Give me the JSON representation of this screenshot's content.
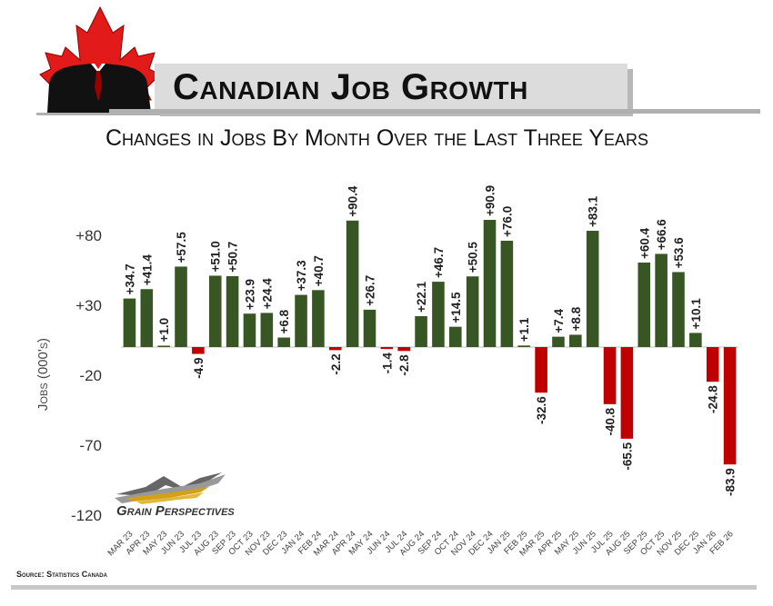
{
  "header": {
    "title": "Canadian Job Growth",
    "subtitle": "Changes in Jobs By Month Over the Last Three Years"
  },
  "footer": {
    "source": "Source: Statistics Canada",
    "logo_text": "Grain Perspectives"
  },
  "colors": {
    "positive": "#375623",
    "negative": "#C00000",
    "leaf": "#E21A1A"
  },
  "chart_data": {
    "type": "bar",
    "title": "Changes in Jobs By Month Over the Last Three Years",
    "ylabel": "Jobs (000's)",
    "xlabel": "",
    "ylim": [
      -120,
      80
    ],
    "yticks": [
      80,
      30,
      -20,
      -70,
      -120
    ],
    "ytick_labels": [
      "+80",
      "+30",
      "-20",
      "-70",
      "-120"
    ],
    "categories": [
      "MAR 23",
      "APR 23",
      "MAY 23",
      "JUN 23",
      "JUL 23",
      "AUG 23",
      "SEP 23",
      "OCT 23",
      "NOV 23",
      "DEC 23",
      "JAN 24",
      "FEB 24",
      "MAR 24",
      "APR 24",
      "MAY 24",
      "JUN 24",
      "JUL 24",
      "AUG 24",
      "SEP 24",
      "OCT 24",
      "NOV 24",
      "DEC 24",
      "JAN 25",
      "FEB 25",
      "MAR 25",
      "APR 25",
      "MAY 25",
      "JUN 25",
      "JUL 25",
      "AUG 25",
      "SEP 25",
      "OCT 25",
      "NOV 25",
      "DEC 25",
      "JAN 26",
      "FEB 26"
    ],
    "values": [
      34.7,
      41.4,
      1.0,
      57.5,
      -4.9,
      51.0,
      50.7,
      23.9,
      24.4,
      6.8,
      37.3,
      40.7,
      -2.2,
      90.4,
      26.7,
      -1.4,
      -2.8,
      22.1,
      46.7,
      14.5,
      50.5,
      90.9,
      76.0,
      1.1,
      -32.6,
      7.4,
      8.8,
      83.1,
      -40.8,
      -65.5,
      60.4,
      66.6,
      53.6,
      10.1,
      -24.8,
      -83.9
    ],
    "labels": [
      "+34.7",
      "+41.4",
      "+1.0",
      "+57.5",
      "-4.9",
      "+51.0",
      "+50.7",
      "+23.9",
      "+24.4",
      "+6.8",
      "+37.3",
      "+40.7",
      "-2.2",
      "+90.4",
      "+26.7",
      "-1.4",
      "-2.8",
      "+22.1",
      "+46.7",
      "+14.5",
      "+50.5",
      "+90.9",
      "+76.0",
      "+1.1",
      "-32.6",
      "+7.4",
      "+8.8",
      "+83.1",
      "-40.8",
      "-65.5",
      "+60.4",
      "+66.6",
      "+53.6",
      "+10.1",
      "-24.8",
      "-83.9"
    ],
    "grid": false,
    "legend": "none"
  }
}
